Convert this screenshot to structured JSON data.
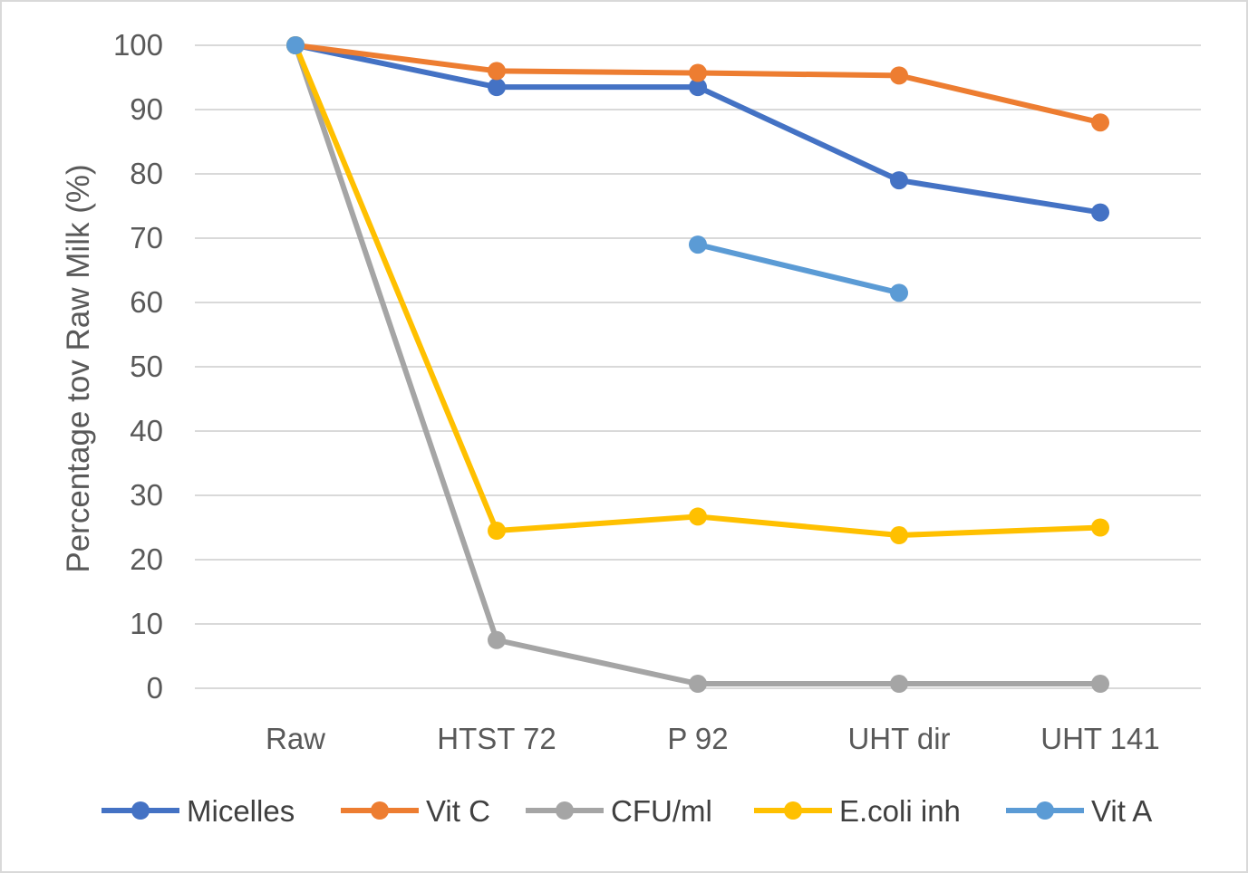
{
  "chart_data": {
    "type": "line",
    "title": "",
    "xlabel": "",
    "ylabel": "Percentage tov Raw Milk (%)",
    "categories": [
      "Raw",
      "HTST 72",
      "P 92",
      "UHT dir",
      "UHT 141"
    ],
    "ylim": [
      0,
      100
    ],
    "yticks": [
      0,
      10,
      20,
      30,
      40,
      50,
      60,
      70,
      80,
      90,
      100
    ],
    "grid": true,
    "legend_position": "bottom",
    "series": [
      {
        "name": "Micelles",
        "color": "#4472C4",
        "values": [
          100,
          93.5,
          93.5,
          79,
          74
        ]
      },
      {
        "name": "Vit C",
        "color": "#ED7D31",
        "values": [
          100,
          96,
          95.7,
          95.3,
          88
        ]
      },
      {
        "name": "CFU/ml",
        "color": "#A5A5A5",
        "values": [
          100,
          7.5,
          0.7,
          0.7,
          0.7
        ]
      },
      {
        "name": "E.coli inh",
        "color": "#FFC000",
        "values": [
          100,
          24.5,
          26.7,
          23.8,
          25
        ]
      },
      {
        "name": "Vit A",
        "color": "#5B9BD5",
        "values": [
          100,
          null,
          69,
          61.5,
          null
        ]
      }
    ]
  }
}
